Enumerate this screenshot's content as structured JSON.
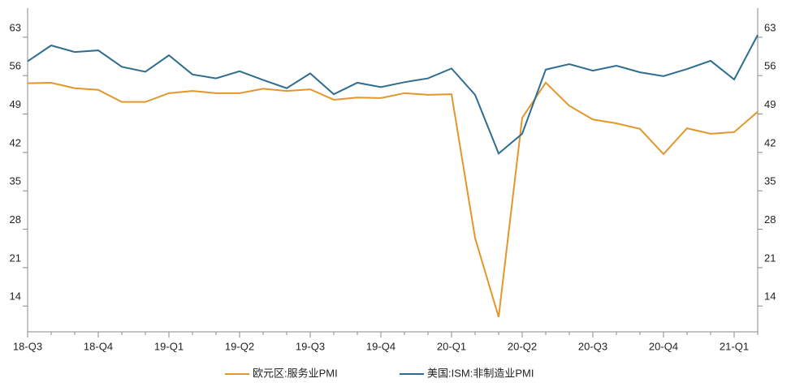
{
  "chart_data": {
    "type": "line",
    "categories": [
      "18-Q3",
      null,
      null,
      "18-Q4",
      null,
      null,
      "19-Q1",
      null,
      null,
      "19-Q2",
      null,
      null,
      "19-Q3",
      null,
      null,
      "19-Q4",
      null,
      null,
      "20-Q1",
      null,
      null,
      "20-Q2",
      null,
      null,
      "20-Q3",
      null,
      null,
      "20-Q4",
      null,
      null,
      "21-Q1",
      null
    ],
    "series": [
      {
        "name": "欧元区:服务业PMI",
        "color": "#e3962c",
        "values": [
          54.6,
          54.7,
          53.7,
          53.4,
          51.2,
          51.2,
          52.8,
          53.2,
          52.8,
          52.8,
          53.6,
          53.2,
          53.5,
          51.6,
          52.0,
          51.9,
          52.8,
          52.5,
          52.6,
          26.4,
          12.0,
          48.3,
          54.7,
          50.5,
          48.0,
          47.3,
          46.3,
          41.7,
          46.4,
          45.4,
          45.7,
          49.4
        ]
      },
      {
        "name": "美国:ISM:非制造业PMI",
        "color": "#2e6d8e",
        "values": [
          58.6,
          61.5,
          60.3,
          60.6,
          57.6,
          56.7,
          59.7,
          56.2,
          55.5,
          56.8,
          55.2,
          53.7,
          56.4,
          52.6,
          54.7,
          53.9,
          54.8,
          55.5,
          57.3,
          52.5,
          41.8,
          45.4,
          57.1,
          58.1,
          56.9,
          57.8,
          56.6,
          55.9,
          57.2,
          58.7,
          55.3,
          63.4
        ]
      }
    ],
    "ylim": [
      9.3,
      68.3
    ],
    "yticks": [
      14,
      21,
      28,
      35,
      42,
      49,
      56,
      63
    ]
  }
}
